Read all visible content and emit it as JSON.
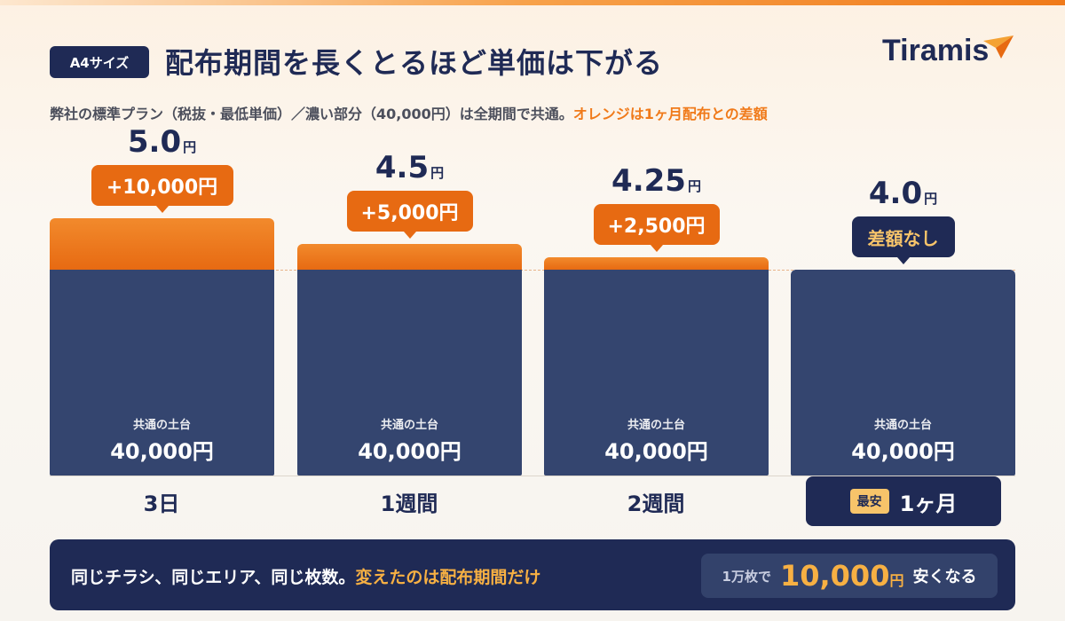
{
  "header": {
    "badge": "A4サイズ",
    "title": "配布期間を長くとるほど単価は下がる",
    "logo": "Tiramis",
    "subtitle_main": "弊社の標準プラン（税抜・最低単価）／濃い部分（40,000円）は全期間で共通。",
    "subtitle_accent": "オレンジは1ヶ月配布との差額"
  },
  "chart_data": {
    "type": "bar",
    "stacked": true,
    "categories": [
      "3日",
      "1週間",
      "2週間",
      "1ヶ月"
    ],
    "unit_price": [
      5.0,
      4.5,
      4.25,
      4.0
    ],
    "unit_price_labels": [
      "5.0",
      "4.5",
      "4.25",
      "4.0"
    ],
    "unit_price_suffix": "円",
    "series": [
      {
        "name": "共通の土台",
        "values": [
          40000,
          40000,
          40000,
          40000
        ]
      },
      {
        "name": "",
        "values": [
          10000,
          5000,
          2500,
          0
        ]
      }
    ],
    "diff_labels": [
      "+10,000円",
      "+5,000円",
      "+2,500円",
      "差額なし"
    ],
    "base_label": "共通の土台",
    "base_value_label": "40,000円",
    "highlight_category_tag": "最安",
    "colors": {
      "base": "#34456f",
      "extra": "#e76a12",
      "navy": "#1f2a55",
      "accent": "#f7b043"
    }
  },
  "footer": {
    "left_main": "同じチラシ、同じエリア、同じ枚数。",
    "left_accent": "変えたのは配布期間だけ",
    "right_pre": "1万枚で",
    "right_amount": "10,000",
    "right_unit": "円",
    "right_post": "安くなる"
  }
}
